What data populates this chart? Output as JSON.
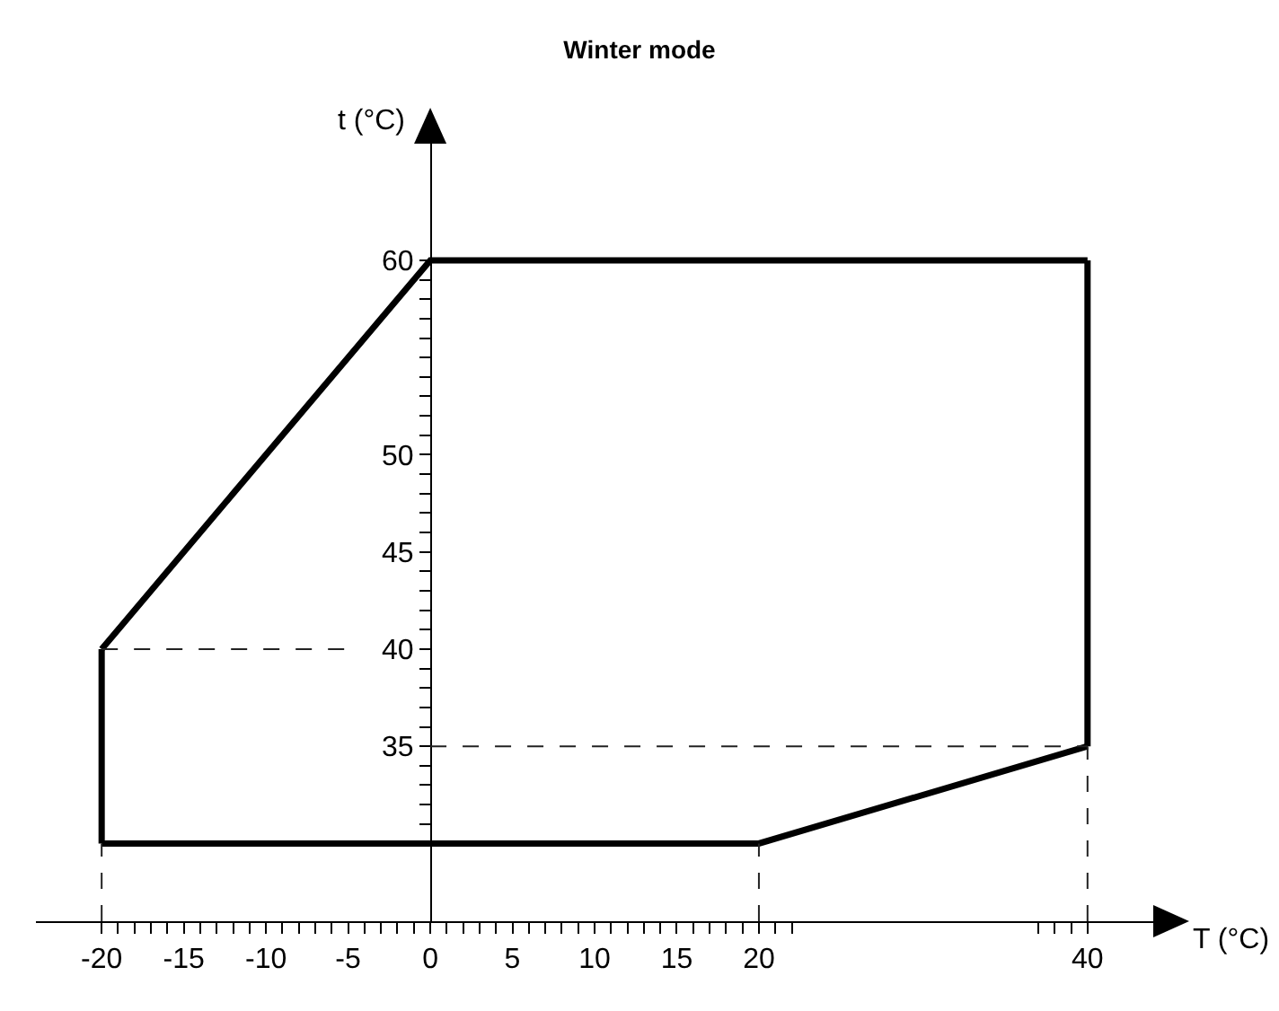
{
  "chart_data": {
    "type": "line",
    "title": "Winter mode",
    "xlabel": "T (°C)",
    "ylabel": "t (°C)",
    "series": [
      {
        "color": "#000000",
        "x": [
          -20,
          0,
          40
        ],
        "values": [
          40,
          60,
          60
        ]
      },
      {
        "color": "#000000",
        "x": [
          -20,
          20,
          40
        ],
        "values": [
          30,
          30,
          35
        ]
      },
      {
        "color": "#000000",
        "x": [
          -20,
          -20
        ],
        "values": [
          30,
          40
        ]
      },
      {
        "color": "#000000",
        "x": [
          40,
          40
        ],
        "values": [
          35,
          60
        ]
      }
    ],
    "xlim": [
      -24,
      44
    ],
    "ylim": [
      26,
      66
    ],
    "xticks": [
      -20,
      {
        "value": -19,
        "label": null
      },
      {
        "value": -18,
        "label": null
      },
      {
        "value": -17,
        "label": null
      },
      {
        "value": -16,
        "label": null
      },
      -15,
      {
        "value": -14,
        "label": null
      },
      {
        "value": -13,
        "label": null
      },
      {
        "value": -12,
        "label": null
      },
      {
        "value": -11,
        "label": null
      },
      -10,
      {
        "value": -9,
        "label": null
      },
      {
        "value": -8,
        "label": null
      },
      {
        "value": -7,
        "label": null
      },
      {
        "value": -6,
        "label": null
      },
      -5,
      {
        "value": -4,
        "label": null
      },
      {
        "value": -3,
        "label": null
      },
      {
        "value": -2,
        "label": null
      },
      {
        "value": -1,
        "label": null
      },
      0,
      {
        "value": 1,
        "label": null
      },
      {
        "value": 2,
        "label": null
      },
      {
        "value": 3,
        "label": null
      },
      {
        "value": 4,
        "label": null
      },
      5,
      {
        "value": 6,
        "label": null
      },
      {
        "value": 7,
        "label": null
      },
      {
        "value": 8,
        "label": null
      },
      {
        "value": 9,
        "label": null
      },
      10,
      {
        "value": 11,
        "label": null
      },
      {
        "value": 12,
        "label": null
      },
      {
        "value": 13,
        "label": null
      },
      {
        "value": 14,
        "label": null
      },
      15,
      {
        "value": 16,
        "label": null
      },
      {
        "value": 17,
        "label": null
      },
      {
        "value": 18,
        "label": null
      },
      {
        "value": 19,
        "label": null
      },
      20,
      {
        "value": 21,
        "label": null
      },
      {
        "value": 22,
        "label": null
      },
      {
        "value": 37,
        "label": null
      },
      {
        "value": 38,
        "label": null
      },
      {
        "value": 39,
        "label": null
      },
      40
    ],
    "yticks": [
      {
        "value": 31,
        "label": null
      },
      {
        "value": 32,
        "label": null
      },
      {
        "value": 33,
        "label": null
      },
      {
        "value": 34,
        "label": null
      },
      35,
      {
        "value": 36,
        "label": null
      },
      {
        "value": 37,
        "label": null
      },
      {
        "value": 38,
        "label": null
      },
      {
        "value": 39,
        "label": null
      },
      40,
      {
        "value": 41,
        "label": null
      },
      {
        "value": 42,
        "label": null
      },
      {
        "value": 43,
        "label": null
      },
      {
        "value": 44,
        "label": null
      },
      45,
      {
        "value": 46,
        "label": null
      },
      {
        "value": 47,
        "label": null
      },
      {
        "value": 48,
        "label": null
      },
      {
        "value": 49,
        "label": null
      },
      50,
      {
        "value": 51,
        "label": null
      },
      {
        "value": 52,
        "label": null
      },
      {
        "value": 53,
        "label": null
      },
      {
        "value": 54,
        "label": null
      },
      {
        "value": 55,
        "label": null
      },
      {
        "value": 56,
        "label": null
      },
      {
        "value": 57,
        "label": null
      },
      {
        "value": 58,
        "label": null
      },
      {
        "value": 59,
        "label": null
      },
      60
    ],
    "ref_lines": [
      {
        "axis": "y",
        "value": 40,
        "line_style": "dashed",
        "color": "#222222"
      },
      {
        "axis": "y",
        "value": 35,
        "line_style": "dashed",
        "color": "#222222"
      },
      {
        "axis": "x",
        "value": -20,
        "line_style": "dashed",
        "color": "#222222"
      },
      {
        "axis": "x",
        "value": 20,
        "line_style": "dashed",
        "color": "#222222"
      },
      {
        "axis": "x",
        "value": 40,
        "line_style": "dashed",
        "color": "#222222"
      }
    ],
    "marker": "none",
    "line_style": "solid"
  }
}
